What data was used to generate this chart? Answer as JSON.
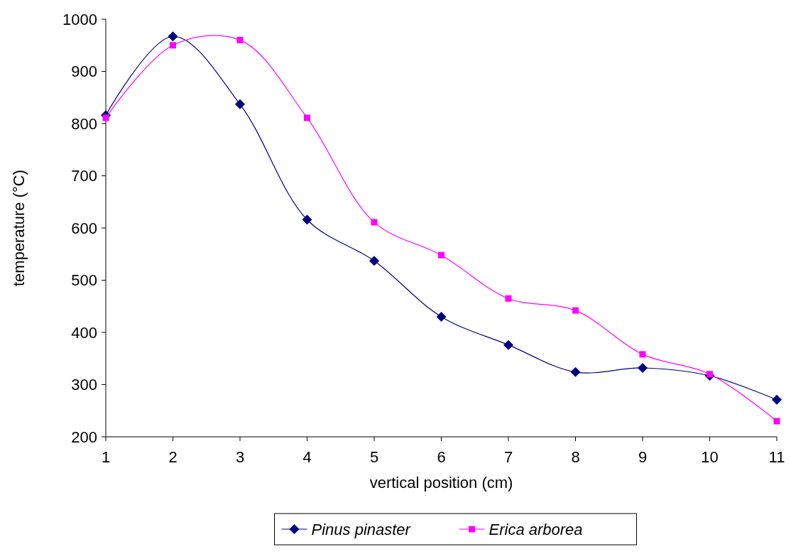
{
  "chart_data": {
    "type": "line",
    "xlabel": "vertical position (cm)",
    "ylabel": "temperature (°C)",
    "x": [
      1,
      2,
      3,
      4,
      5,
      6,
      7,
      8,
      9,
      10,
      11
    ],
    "xlim": [
      1,
      11
    ],
    "xticks": [
      1,
      2,
      3,
      4,
      5,
      6,
      7,
      8,
      9,
      10,
      11
    ],
    "ylim": [
      200,
      1000
    ],
    "yticks": [
      200,
      300,
      400,
      500,
      600,
      700,
      800,
      900,
      1000
    ],
    "grid": false,
    "legend": "bottom",
    "series": [
      {
        "name": "Pinus pinaster",
        "color": "#000080",
        "marker": "diamond",
        "values": [
          816,
          967,
          837,
          616,
          537,
          430,
          376,
          324,
          332,
          317,
          271
        ]
      },
      {
        "name": "Erica arborea",
        "color": "#ff00ff",
        "marker": "square",
        "values": [
          811,
          950,
          960,
          811,
          611,
          548,
          465,
          442,
          358,
          320,
          230
        ]
      }
    ]
  }
}
